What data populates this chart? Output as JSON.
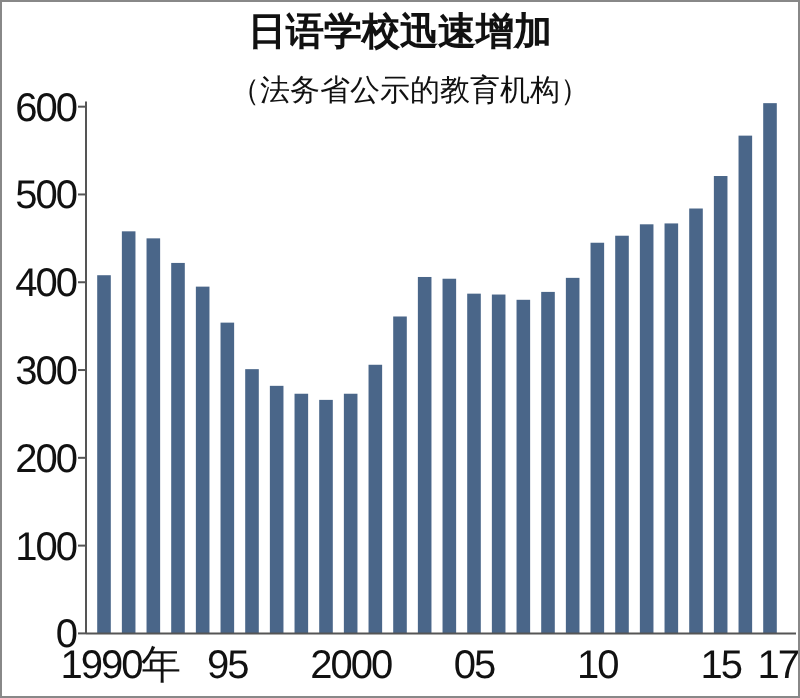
{
  "chart_data": {
    "type": "bar",
    "title": "日语学校迅速增加",
    "subtitle": "（法务省公示的教育机构）",
    "categories": [
      "1990年",
      null,
      null,
      null,
      null,
      "95",
      null,
      null,
      null,
      null,
      "2000",
      null,
      null,
      null,
      null,
      "05",
      null,
      null,
      null,
      null,
      "10",
      null,
      null,
      null,
      null,
      "15",
      null,
      "17"
    ],
    "values": [
      408,
      458,
      450,
      422,
      395,
      354,
      301,
      282,
      273,
      266,
      273,
      306,
      361,
      406,
      404,
      387,
      386,
      380,
      389,
      405,
      445,
      453,
      466,
      467,
      484,
      521,
      567,
      604
    ],
    "color": "#4a6689",
    "ylim": [
      0,
      606
    ],
    "yticks": [
      0,
      100,
      200,
      300,
      400,
      500,
      600
    ]
  }
}
